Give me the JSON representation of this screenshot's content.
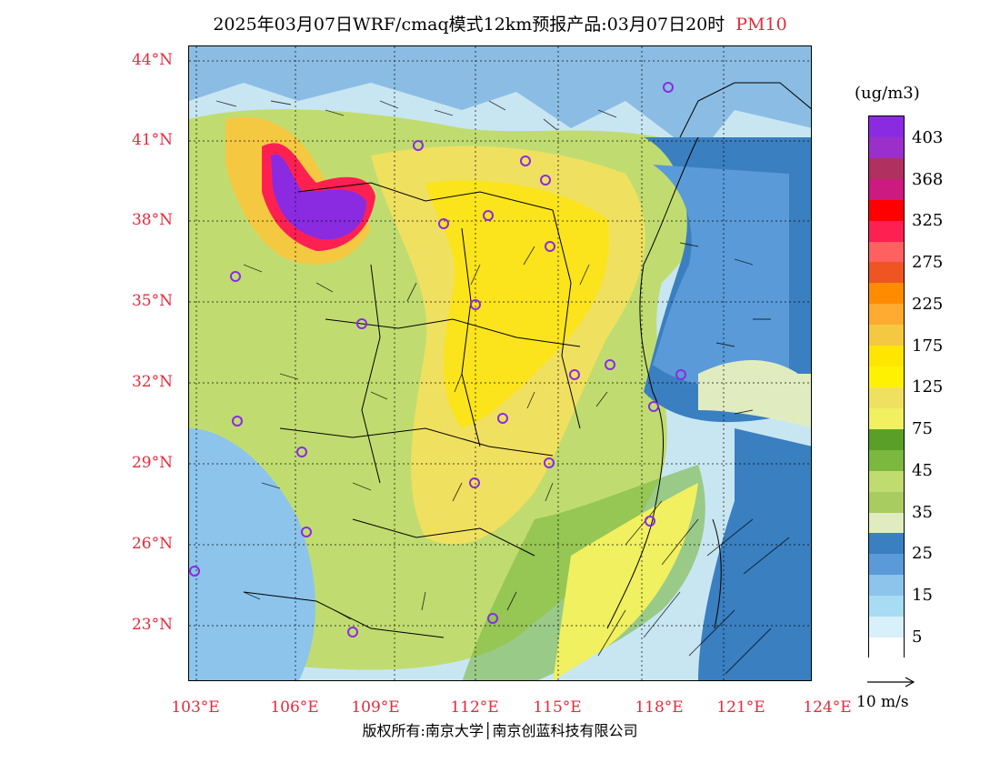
{
  "title": {
    "main": "2025年03月07日WRF/cmaq模式12km预报产品:03月07日20时",
    "pollutant": "PM10"
  },
  "map": {
    "lat_labels": [
      "44°N",
      "41°N",
      "38°N",
      "35°N",
      "32°N",
      "29°N",
      "26°N",
      "23°N"
    ],
    "lon_labels": [
      "103°E",
      "106°E",
      "109°E",
      "112°E",
      "115°E",
      "118°E",
      "121°E",
      "124°E"
    ]
  },
  "legend": {
    "unit": "(ug/m3)",
    "labels": [
      "403",
      "368",
      "325",
      "275",
      "225",
      "175",
      "125",
      "75",
      "45",
      "35",
      "25",
      "15",
      "5"
    ],
    "colors": [
      "#8a2be2",
      "#9b2fc9",
      "#b03060",
      "#cc1a80",
      "#ff0000",
      "#ff2052",
      "#ff6060",
      "#ee5522",
      "#ff8c00",
      "#ffaa30",
      "#f5c842",
      "#ffe600",
      "#fff200",
      "#f0e060",
      "#f0f060",
      "#5aa028",
      "#7ab840",
      "#c0dc70",
      "#a8cc60",
      "#e0ecc0",
      "#3a7fc0",
      "#5a9ad8",
      "#8cc4ec",
      "#a8dcf4",
      "#d8f0fa",
      "#ffffff"
    ]
  },
  "wind_reference": "10 m/s",
  "copyright": "版权所有:南京大学│南京创蓝科技有限公司"
}
